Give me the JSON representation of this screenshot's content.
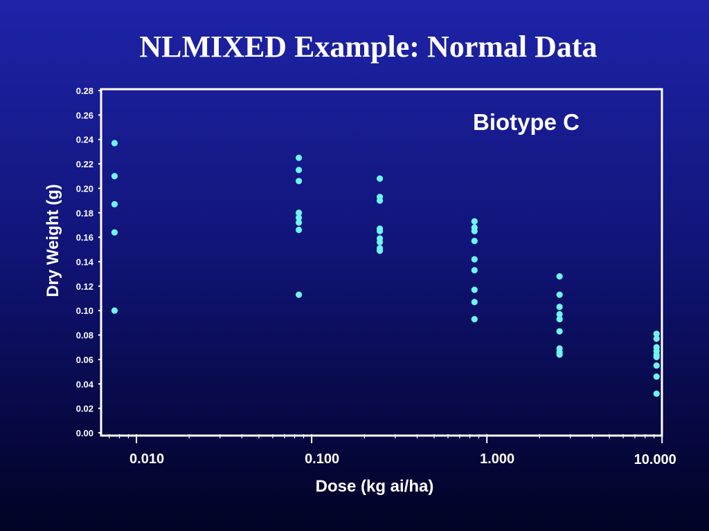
{
  "slide": {
    "title": "NLMIXED Example: Normal Data"
  },
  "colors": {
    "background_top": "#1e23a8",
    "background_bottom": "#020325",
    "axis": "#ffffff",
    "points": "#6ff4f4"
  },
  "chart_data": {
    "type": "scatter",
    "xlabel": "Dose (kg ai/ha)",
    "ylabel": "Dry Weight (g)",
    "annotation": "Biotype C",
    "x_scale": "log",
    "xlim": [
      0.0064,
      9.8
    ],
    "ylim": [
      0,
      0.28
    ],
    "x_ticks": [
      0.01,
      0.1,
      1,
      10
    ],
    "x_tick_labels": [
      "0.010",
      "0.100",
      "1.000",
      "10.000"
    ],
    "y_ticks": [
      0,
      0.02,
      0.04,
      0.06,
      0.08,
      0.1,
      0.12,
      0.14,
      0.16,
      0.18,
      0.2,
      0.22,
      0.24,
      0.26,
      0.28
    ],
    "y_tick_labels": [
      "0.00",
      "0.02",
      "0.04",
      "0.06",
      "0.08",
      "0.10",
      "0.12",
      "0.14",
      "0.16",
      "0.18",
      "0.20",
      "0.22",
      "0.24",
      "0.26",
      "0.28"
    ],
    "grid": false,
    "legend": "none",
    "series": [
      {
        "points": [
          {
            "x": 0.0075,
            "y": 0.237
          },
          {
            "x": 0.0075,
            "y": 0.21
          },
          {
            "x": 0.0075,
            "y": 0.187
          },
          {
            "x": 0.0075,
            "y": 0.164
          },
          {
            "x": 0.0075,
            "y": 0.1
          },
          {
            "x": 0.0845,
            "y": 0.225
          },
          {
            "x": 0.0845,
            "y": 0.215
          },
          {
            "x": 0.0845,
            "y": 0.206
          },
          {
            "x": 0.0845,
            "y": 0.18
          },
          {
            "x": 0.0845,
            "y": 0.176
          },
          {
            "x": 0.0845,
            "y": 0.172
          },
          {
            "x": 0.0845,
            "y": 0.166
          },
          {
            "x": 0.0845,
            "y": 0.113
          },
          {
            "x": 0.245,
            "y": 0.208
          },
          {
            "x": 0.245,
            "y": 0.193
          },
          {
            "x": 0.245,
            "y": 0.19
          },
          {
            "x": 0.245,
            "y": 0.167
          },
          {
            "x": 0.245,
            "y": 0.165
          },
          {
            "x": 0.245,
            "y": 0.159
          },
          {
            "x": 0.245,
            "y": 0.156
          },
          {
            "x": 0.245,
            "y": 0.151
          },
          {
            "x": 0.245,
            "y": 0.149
          },
          {
            "x": 0.85,
            "y": 0.173
          },
          {
            "x": 0.85,
            "y": 0.168
          },
          {
            "x": 0.85,
            "y": 0.165
          },
          {
            "x": 0.85,
            "y": 0.157
          },
          {
            "x": 0.85,
            "y": 0.142
          },
          {
            "x": 0.85,
            "y": 0.133
          },
          {
            "x": 0.85,
            "y": 0.117
          },
          {
            "x": 0.85,
            "y": 0.107
          },
          {
            "x": 0.85,
            "y": 0.093
          },
          {
            "x": 2.6,
            "y": 0.128
          },
          {
            "x": 2.6,
            "y": 0.113
          },
          {
            "x": 2.6,
            "y": 0.103
          },
          {
            "x": 2.6,
            "y": 0.097
          },
          {
            "x": 2.6,
            "y": 0.093
          },
          {
            "x": 2.6,
            "y": 0.083
          },
          {
            "x": 2.6,
            "y": 0.069
          },
          {
            "x": 2.6,
            "y": 0.066
          },
          {
            "x": 2.6,
            "y": 0.064
          },
          {
            "x": 9.3,
            "y": 0.081
          },
          {
            "x": 9.3,
            "y": 0.077
          },
          {
            "x": 9.3,
            "y": 0.07
          },
          {
            "x": 9.3,
            "y": 0.067
          },
          {
            "x": 9.3,
            "y": 0.064
          },
          {
            "x": 9.3,
            "y": 0.062
          },
          {
            "x": 9.3,
            "y": 0.055
          },
          {
            "x": 9.3,
            "y": 0.046
          },
          {
            "x": 9.3,
            "y": 0.032
          }
        ]
      }
    ]
  }
}
